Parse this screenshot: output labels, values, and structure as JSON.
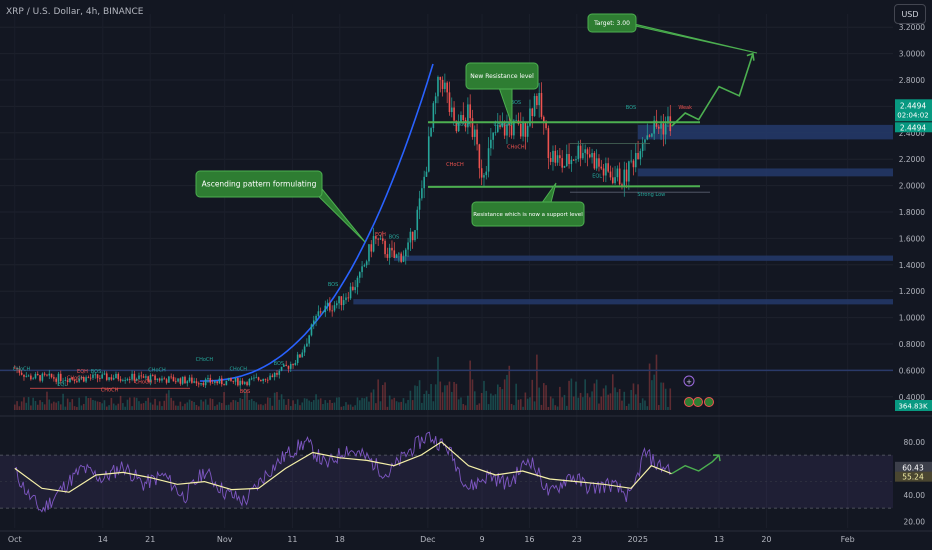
{
  "header": {
    "symbol": "XRP / U.S. Dollar, 4h, BINANCE",
    "currency_button": "USD"
  },
  "colors": {
    "background": "#131722",
    "bull": "#26a69a",
    "bear": "#ef5350",
    "annotation_green": "#4caf50",
    "annotation_fill": "#2e7d32",
    "zone_blue": "#243a6b",
    "curve_blue": "#2962ff",
    "rsi_line": "#7e57c2",
    "rsi_ma": "#f5f0a8"
  },
  "chart_data": [
    {
      "type": "candlestick",
      "title": "XRP / U.S. Dollar, 4h, BINANCE",
      "ylim": [
        0.3,
        3.3
      ],
      "y_ticks": [
        "3.2000",
        "3.0000",
        "2.8000",
        "2.6000",
        "2.4000",
        "2.2000",
        "2.0000",
        "1.8000",
        "1.6000",
        "1.4000",
        "1.2000",
        "1.0000",
        "0.8000",
        "0.6000",
        "0.4000"
      ],
      "x_ticks": [
        "Oct",
        "14",
        "21",
        "Nov",
        "11",
        "18",
        "Dec",
        "9",
        "16",
        "23",
        "2025",
        "13",
        "20",
        "Feb"
      ],
      "price_path": [
        [
          "2024-10-01",
          0.62
        ],
        [
          "2024-10-03",
          0.55
        ],
        [
          "2024-10-10",
          0.54
        ],
        [
          "2024-10-17",
          0.55
        ],
        [
          "2024-10-24",
          0.53
        ],
        [
          "2024-10-31",
          0.51
        ],
        [
          "2024-11-05",
          0.52
        ],
        [
          "2024-11-09",
          0.58
        ],
        [
          "2024-11-12",
          0.7
        ],
        [
          "2024-11-15",
          1.05
        ],
        [
          "2024-11-18",
          1.12
        ],
        [
          "2024-11-21",
          1.3
        ],
        [
          "2024-11-23",
          1.6
        ],
        [
          "2024-11-26",
          1.45
        ],
        [
          "2024-11-28",
          1.5
        ],
        [
          "2024-11-30",
          1.9
        ],
        [
          "2024-12-02",
          2.6
        ],
        [
          "2024-12-03",
          2.85
        ],
        [
          "2024-12-05",
          2.4
        ],
        [
          "2024-12-07",
          2.55
        ],
        [
          "2024-12-09",
          2.1
        ],
        [
          "2024-12-11",
          2.4
        ],
        [
          "2024-12-13",
          2.45
        ],
        [
          "2024-12-15",
          2.4
        ],
        [
          "2024-12-17",
          2.7
        ],
        [
          "2024-12-19",
          2.25
        ],
        [
          "2024-12-21",
          2.15
        ],
        [
          "2024-12-24",
          2.3
        ],
        [
          "2024-12-27",
          2.1
        ],
        [
          "2024-12-30",
          2.05
        ],
        [
          "2025-01-02",
          2.4
        ],
        [
          "2025-01-04",
          2.45
        ],
        [
          "2025-01-06",
          2.48
        ]
      ],
      "projection_path": [
        [
          "2025-01-06",
          2.45
        ],
        [
          "2025-01-08",
          2.55
        ],
        [
          "2025-01-10",
          2.5
        ],
        [
          "2025-01-13",
          2.75
        ],
        [
          "2025-01-16",
          2.68
        ],
        [
          "2025-01-18",
          3.0
        ]
      ],
      "current_price_label": "2.4494",
      "countdown_label": "02:04:02",
      "volume_label": "364.83K",
      "horizontal_lines": [
        {
          "name": "New Resistance level",
          "value": 2.48,
          "start": "2024-11-30",
          "end": "2025-01-06"
        },
        {
          "name": "Resistance which is now a support level",
          "value": 1.99,
          "start": "2024-11-30",
          "end": "2025-01-06"
        }
      ],
      "demand_zones": [
        {
          "from": 2.35,
          "to": 2.46,
          "start": "2025-01-01"
        },
        {
          "from": 2.07,
          "to": 2.13,
          "start": "2025-01-01"
        },
        {
          "from": 1.43,
          "to": 1.47,
          "start": "2024-11-26"
        },
        {
          "from": 1.1,
          "to": 1.14,
          "start": "2024-11-20"
        }
      ],
      "structure_labels": [
        {
          "text": "CHoCH",
          "date": "2024-10-02",
          "value": 0.6,
          "color": "bull"
        },
        {
          "text": "CHoCH",
          "date": "2024-10-10",
          "value": 0.53,
          "color": "bear"
        },
        {
          "text": "EQH",
          "date": "2024-10-11",
          "value": 0.58,
          "color": "bear"
        },
        {
          "text": "EQL",
          "date": "2024-10-08",
          "value": 0.48,
          "color": "bull"
        },
        {
          "text": "BOS",
          "date": "2024-10-13",
          "value": 0.58,
          "color": "bull"
        },
        {
          "text": "CHoCH",
          "date": "2024-10-22",
          "value": 0.59,
          "color": "bull"
        },
        {
          "text": "CHoCH",
          "date": "2024-10-20",
          "value": 0.5,
          "color": "bear"
        },
        {
          "text": "CHoCH",
          "date": "2024-10-15",
          "value": 0.44,
          "color": "bear"
        },
        {
          "text": "CHoCH",
          "date": "2024-10-29",
          "value": 0.67,
          "color": "bull"
        },
        {
          "text": "CHoCH",
          "date": "2024-11-03",
          "value": 0.6,
          "color": "bull"
        },
        {
          "text": "BOS",
          "date": "2024-11-04",
          "value": 0.43,
          "color": "bear"
        },
        {
          "text": "BOS",
          "date": "2024-11-09",
          "value": 0.64,
          "color": "bull"
        },
        {
          "text": "BOS",
          "date": "2024-11-17",
          "value": 1.24,
          "color": "bull"
        },
        {
          "text": "EQH",
          "date": "2024-11-24",
          "value": 1.62,
          "color": "bear"
        },
        {
          "text": "BOS",
          "date": "2024-11-26",
          "value": 1.6,
          "color": "bull"
        },
        {
          "text": "CHoCH",
          "date": "2024-12-06",
          "value": 2.45,
          "color": "bull"
        },
        {
          "text": "CHoCH",
          "date": "2024-12-05",
          "value": 2.15,
          "color": "bear"
        },
        {
          "text": "BOS",
          "date": "2024-12-14",
          "value": 2.62,
          "color": "bull"
        },
        {
          "text": "CHoCH",
          "date": "2024-12-12",
          "value": 2.45,
          "color": "bull"
        },
        {
          "text": "CHoCH",
          "date": "2024-12-14",
          "value": 2.28,
          "color": "bear"
        },
        {
          "text": "BOS",
          "date": "2024-12-31",
          "value": 2.58,
          "color": "bull"
        },
        {
          "text": "EQL",
          "date": "2024-12-26",
          "value": 2.06,
          "color": "bull"
        },
        {
          "text": "Weak",
          "date": "2025-01-08",
          "value": 2.58,
          "color": "bear"
        },
        {
          "text": "Strong Low",
          "date": "2025-01-03",
          "value": 1.92,
          "color": "bull"
        }
      ],
      "annotations": [
        {
          "text": "Target: 3.00"
        },
        {
          "text": "New Resistance level"
        },
        {
          "text": "Ascending pattern formulating"
        },
        {
          "text": "Resistance which is now a support level"
        }
      ]
    },
    {
      "type": "line",
      "title": "RSI",
      "ylim": [
        15,
        95
      ],
      "y_ticks": [
        "80.00",
        "60.00",
        "40.00",
        "20.00"
      ],
      "band": [
        30,
        70
      ],
      "series": [
        {
          "role": "rsi",
          "value_label": "60.43",
          "points": [
            [
              "2024-10-01",
              58
            ],
            [
              "2024-10-03",
              40
            ],
            [
              "2024-10-05",
              28
            ],
            [
              "2024-10-08",
              45
            ],
            [
              "2024-10-11",
              60
            ],
            [
              "2024-10-14",
              52
            ],
            [
              "2024-10-17",
              62
            ],
            [
              "2024-10-20",
              48
            ],
            [
              "2024-10-23",
              55
            ],
            [
              "2024-10-26",
              38
            ],
            [
              "2024-10-29",
              58
            ],
            [
              "2024-11-01",
              42
            ],
            [
              "2024-11-04",
              35
            ],
            [
              "2024-11-07",
              55
            ],
            [
              "2024-11-10",
              70
            ],
            [
              "2024-11-13",
              80
            ],
            [
              "2024-11-16",
              62
            ],
            [
              "2024-11-19",
              75
            ],
            [
              "2024-11-22",
              68
            ],
            [
              "2024-11-25",
              55
            ],
            [
              "2024-11-28",
              72
            ],
            [
              "2024-12-01",
              85
            ],
            [
              "2024-12-04",
              75
            ],
            [
              "2024-12-07",
              45
            ],
            [
              "2024-12-10",
              55
            ],
            [
              "2024-12-13",
              48
            ],
            [
              "2024-12-16",
              68
            ],
            [
              "2024-12-19",
              40
            ],
            [
              "2024-12-22",
              55
            ],
            [
              "2024-12-25",
              45
            ],
            [
              "2024-12-28",
              48
            ],
            [
              "2024-12-31",
              38
            ],
            [
              "2025-01-02",
              72
            ],
            [
              "2025-01-04",
              62
            ],
            [
              "2025-01-06",
              60
            ]
          ]
        },
        {
          "role": "rsi_ma",
          "value_label": "55.24",
          "points": [
            [
              "2024-10-01",
              60
            ],
            [
              "2024-10-05",
              45
            ],
            [
              "2024-10-09",
              42
            ],
            [
              "2024-10-13",
              55
            ],
            [
              "2024-10-17",
              57
            ],
            [
              "2024-10-21",
              53
            ],
            [
              "2024-10-25",
              48
            ],
            [
              "2024-10-29",
              50
            ],
            [
              "2024-11-02",
              44
            ],
            [
              "2024-11-06",
              45
            ],
            [
              "2024-11-10",
              60
            ],
            [
              "2024-11-14",
              72
            ],
            [
              "2024-11-18",
              68
            ],
            [
              "2024-11-22",
              66
            ],
            [
              "2024-11-26",
              62
            ],
            [
              "2024-11-30",
              70
            ],
            [
              "2024-12-03",
              80
            ],
            [
              "2024-12-07",
              62
            ],
            [
              "2024-12-11",
              55
            ],
            [
              "2024-12-15",
              58
            ],
            [
              "2024-12-19",
              52
            ],
            [
              "2024-12-23",
              50
            ],
            [
              "2024-12-27",
              48
            ],
            [
              "2024-12-31",
              45
            ],
            [
              "2025-01-03",
              62
            ],
            [
              "2025-01-06",
              56
            ]
          ]
        },
        {
          "role": "projection",
          "points": [
            [
              "2025-01-06",
              56
            ],
            [
              "2025-01-08",
              62
            ],
            [
              "2025-01-10",
              58
            ],
            [
              "2025-01-12",
              65
            ],
            [
              "2025-01-13",
              70
            ]
          ]
        }
      ]
    }
  ]
}
